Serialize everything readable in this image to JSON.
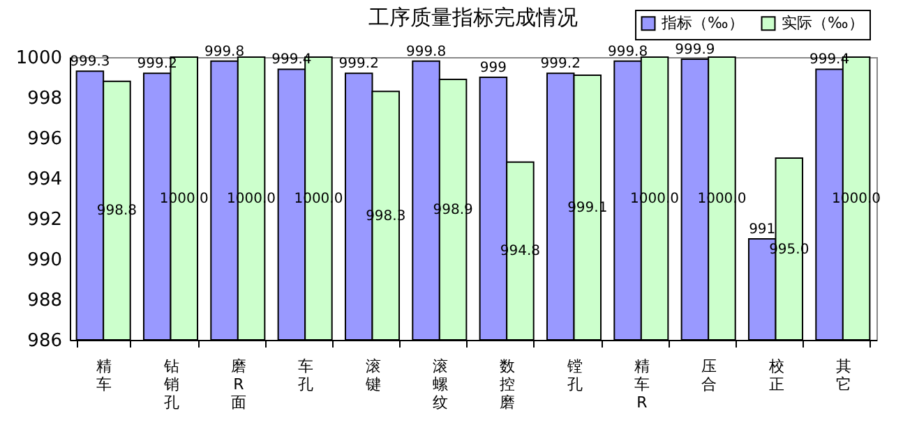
{
  "chart_data": {
    "type": "bar",
    "title": "工序质量指标完成情况",
    "categories": [
      "精车",
      "钻销孔",
      "磨R面",
      "车孔",
      "滚键",
      "滚螺纹",
      "数控磨",
      "镗孔",
      "精车R",
      "压合",
      "校正",
      "其它"
    ],
    "series": [
      {
        "name": "指标（‰）",
        "color": "#9999ff",
        "values": [
          999.3,
          999.2,
          999.8,
          999.4,
          999.2,
          999.8,
          999,
          999.2,
          999.8,
          999.9,
          991,
          999.4
        ],
        "value_labels": [
          "999.3",
          "999.2",
          "999.8",
          "999.4",
          "999.2",
          "999.8",
          "999",
          "999.2",
          "999.8",
          "999.9",
          "991",
          "999.4"
        ]
      },
      {
        "name": "实际（‰）",
        "color": "#ccffcc",
        "values": [
          998.8,
          1000.0,
          1000.0,
          1000.0,
          998.3,
          998.9,
          994.8,
          999.1,
          1000.0,
          1000.0,
          995.0,
          1000.0
        ],
        "value_labels": [
          "998.8",
          "1000.0",
          "1000.0",
          "1000.0",
          "998.3",
          "998.9",
          "994.8",
          "999.1",
          "1000.0",
          "1000.0",
          "995.0",
          "1000.0"
        ]
      }
    ],
    "ylim": [
      986,
      1000
    ],
    "yticks": [
      986,
      988,
      990,
      992,
      994,
      996,
      998,
      1000
    ],
    "grid": false,
    "legend": "top right"
  }
}
